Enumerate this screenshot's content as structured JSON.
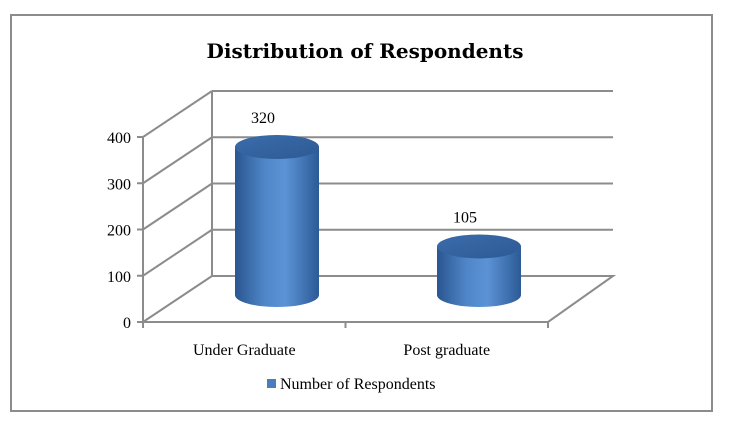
{
  "chart_data": {
    "type": "bar",
    "title": "Distribution of Respondents",
    "categories": [
      "Under Graduate",
      "Post graduate"
    ],
    "series": [
      {
        "name": "Number of Respondents",
        "values": [
          320,
          105
        ],
        "color": "#4a7ebb"
      }
    ],
    "data_labels": [
      "320",
      "105"
    ],
    "ylim": [
      0,
      400
    ],
    "yticks": [
      "0",
      "100",
      "200",
      "300",
      "400"
    ],
    "grid": true,
    "legend_position": "bottom",
    "style": "3d-cylinder"
  }
}
